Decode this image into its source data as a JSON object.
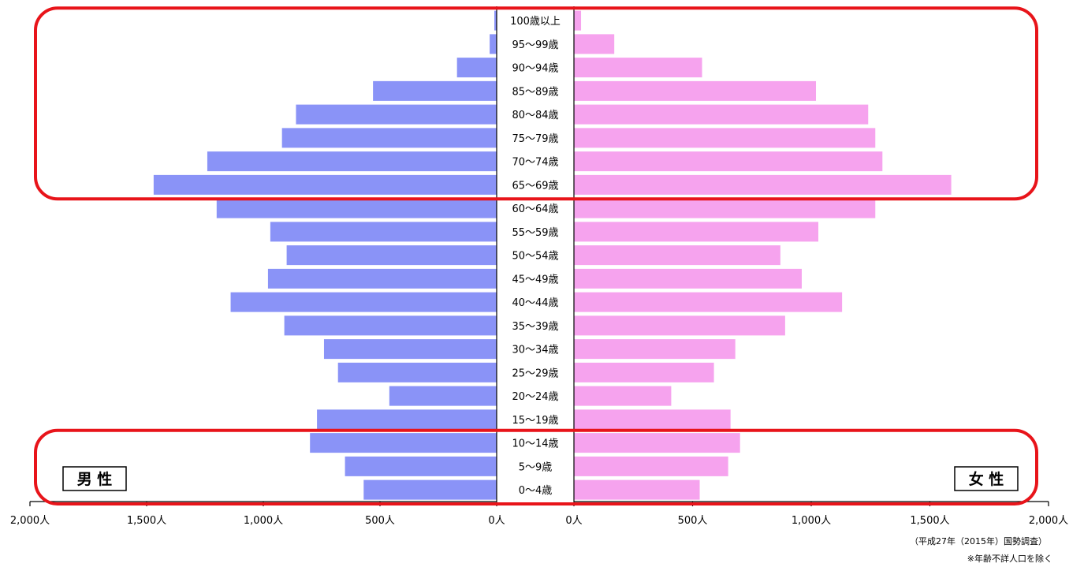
{
  "chart_data": {
    "type": "bar",
    "orientation": "horizontal",
    "subtype": "population-pyramid",
    "categories": [
      "0～4歳",
      "5～9歳",
      "10～14歳",
      "15～19歳",
      "20～24歳",
      "25～29歳",
      "30～34歳",
      "35～39歳",
      "40～44歳",
      "45～49歳",
      "50～54歳",
      "55～59歳",
      "60～64歳",
      "65～69歳",
      "70～74歳",
      "75～79歳",
      "80～84歳",
      "85～89歳",
      "90～94歳",
      "95～99歳",
      "100歳以上"
    ],
    "series": [
      {
        "name": "男 性",
        "side": "left",
        "color": "#8a93f7",
        "values": [
          570,
          650,
          800,
          770,
          460,
          680,
          740,
          910,
          1140,
          980,
          900,
          970,
          1200,
          1470,
          1240,
          920,
          860,
          530,
          170,
          30,
          10
        ]
      },
      {
        "name": "女 性",
        "side": "right",
        "color": "#f6a3ee",
        "values": [
          530,
          650,
          700,
          660,
          410,
          590,
          680,
          890,
          1130,
          960,
          870,
          1030,
          1270,
          1590,
          1300,
          1270,
          1240,
          1020,
          540,
          170,
          30
        ]
      }
    ],
    "xlim": [
      0,
      2000
    ],
    "male_ticks": [
      "2,000人",
      "1,500人",
      "1,000人",
      "500人",
      "0人"
    ],
    "female_ticks": [
      "0人",
      "500人",
      "1,000人",
      "1,500人",
      "2,000人"
    ],
    "tick_values": [
      0,
      500,
      1000,
      1500,
      2000
    ],
    "highlight_groups": [
      {
        "from": "65～69歳",
        "to": "100歳以上",
        "color": "#e8141a"
      },
      {
        "from": "0～4歳",
        "to": "10～14歳",
        "color": "#e8141a"
      }
    ],
    "notes": [
      "（平成27年（2015年）国勢調査）",
      "※年齢不詳人口を除く"
    ],
    "grid": false,
    "legend": "boxed labels bottom-left (男 性) and bottom-right (女 性)"
  }
}
